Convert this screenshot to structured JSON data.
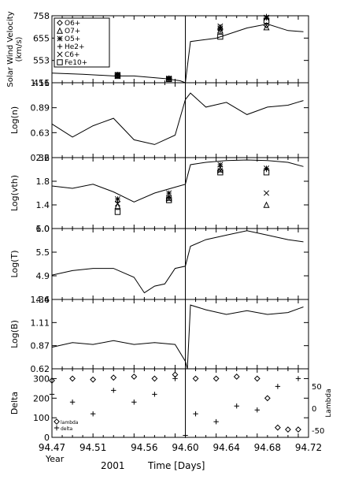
{
  "footer": {
    "year_label": "Year",
    "year_value": "2001",
    "xlabel": "Time [Days]"
  },
  "chart_data": [
    {
      "type": "scatter",
      "ylabel": "Solar Wind Velocity (km/s)",
      "ylim": [
        451,
        758
      ],
      "yticks": [
        "758",
        "655",
        "553",
        "451"
      ],
      "legend": [
        "O6+",
        "O7+",
        "O5+",
        "He2+",
        "C6+",
        "Fe10+"
      ],
      "legend_placement": "top-left",
      "series": [
        {
          "name": "O6+",
          "marker": "diamond",
          "x": [
            94.534,
            94.584,
            94.634,
            94.679
          ],
          "y": [
            486,
            470,
            696,
            714
          ]
        },
        {
          "name": "O7+",
          "marker": "triangle",
          "x": [
            94.534,
            94.584,
            94.634,
            94.679
          ],
          "y": [
            482,
            468,
            690,
            705
          ]
        },
        {
          "name": "O5+",
          "marker": "star",
          "x": [
            94.534,
            94.584,
            94.634,
            94.679
          ],
          "y": [
            487,
            471,
            701,
            748
          ]
        },
        {
          "name": "He2+",
          "marker": "plus",
          "x": [
            94.534,
            94.584,
            94.634,
            94.679
          ],
          "y": [
            489,
            473,
            707,
            755
          ]
        },
        {
          "name": "C6+",
          "marker": "x",
          "x": [
            94.534,
            94.584,
            94.634,
            94.679
          ],
          "y": [
            487,
            469,
            710,
            750
          ]
        },
        {
          "name": "Fe10+",
          "marker": "square",
          "x": [
            94.534,
            94.584,
            94.634,
            94.679
          ],
          "y": [
            486,
            468,
            662,
            735
          ]
        }
      ],
      "line": {
        "x": [
          94.47,
          94.5,
          94.53,
          94.55,
          94.58,
          94.595,
          94.6,
          94.605,
          94.63,
          94.66,
          94.68,
          94.7,
          94.715
        ],
        "y": [
          495,
          490,
          482,
          482,
          470,
          460,
          451,
          640,
          655,
          702,
          720,
          690,
          685
        ]
      }
    },
    {
      "type": "line",
      "ylabel": "Log(n)",
      "ylim": [
        0.36,
        1.16
      ],
      "yticks": [
        "1.16",
        "0.89",
        "0.63",
        "0.36"
      ],
      "x": [
        94.47,
        94.49,
        94.51,
        94.53,
        94.55,
        94.57,
        94.59,
        94.6,
        94.605,
        94.62,
        94.64,
        94.66,
        94.68,
        94.7,
        94.715
      ],
      "y": [
        0.72,
        0.58,
        0.7,
        0.78,
        0.55,
        0.5,
        0.6,
        0.98,
        1.05,
        0.9,
        0.95,
        0.82,
        0.9,
        0.92,
        0.97
      ]
    },
    {
      "type": "line",
      "ylabel": "Log(vth)",
      "ylim": [
        1.0,
        2.2
      ],
      "yticks": [
        "2.2",
        "1.8",
        "1.4",
        "1.0"
      ],
      "x": [
        94.47,
        94.49,
        94.51,
        94.53,
        94.55,
        94.57,
        94.59,
        94.6,
        94.605,
        94.62,
        94.64,
        94.66,
        94.68,
        94.7,
        94.715
      ],
      "y": [
        1.72,
        1.68,
        1.75,
        1.62,
        1.45,
        1.6,
        1.7,
        1.75,
        2.08,
        2.12,
        2.15,
        2.16,
        2.15,
        2.12,
        2.05
      ],
      "markers": [
        {
          "name": "O5+",
          "marker": "star",
          "x": [
            94.534,
            94.584,
            94.634,
            94.679
          ],
          "y": [
            1.5,
            1.6,
            2.08,
            2.02
          ]
        },
        {
          "name": "He2+",
          "marker": "plus",
          "x": [
            94.534,
            94.584,
            94.634,
            94.679
          ],
          "y": [
            1.45,
            1.55,
            2.05,
            2.0
          ]
        },
        {
          "name": "C6+",
          "marker": "x",
          "x": [
            94.534,
            94.584,
            94.634,
            94.679
          ],
          "y": [
            1.42,
            1.5,
            1.98,
            1.6
          ]
        },
        {
          "name": "O7+",
          "marker": "triangle",
          "x": [
            94.534,
            94.584,
            94.634,
            94.679
          ],
          "y": [
            1.38,
            1.52,
            2.0,
            1.4
          ]
        },
        {
          "name": "Fe10+",
          "marker": "square",
          "x": [
            94.534,
            94.584,
            94.634,
            94.679
          ],
          "y": [
            1.28,
            1.48,
            1.95,
            1.95
          ]
        }
      ]
    },
    {
      "type": "line",
      "ylabel": "Log(T)",
      "ylim": [
        4.4,
        6.0
      ],
      "yticks": [
        "6.0",
        "5.5",
        "4.9",
        "4.4"
      ],
      "x": [
        94.47,
        94.49,
        94.51,
        94.53,
        94.55,
        94.56,
        94.57,
        94.58,
        94.59,
        94.6,
        94.605,
        94.62,
        94.64,
        94.66,
        94.68,
        94.7,
        94.715
      ],
      "y": [
        4.95,
        5.05,
        5.1,
        5.1,
        4.9,
        4.55,
        4.7,
        4.75,
        5.1,
        5.15,
        5.6,
        5.75,
        5.85,
        5.95,
        5.85,
        5.75,
        5.7
      ]
    },
    {
      "type": "line",
      "ylabel": "Log(B)",
      "ylim": [
        0.62,
        1.36
      ],
      "yticks": [
        "1.36",
        "1.11",
        "0.87",
        "0.62"
      ],
      "x": [
        94.47,
        94.49,
        94.51,
        94.53,
        94.55,
        94.57,
        94.59,
        94.6,
        94.602,
        94.605,
        94.62,
        94.64,
        94.66,
        94.68,
        94.7,
        94.715
      ],
      "y": [
        0.85,
        0.9,
        0.88,
        0.92,
        0.88,
        0.9,
        0.88,
        0.7,
        0.62,
        1.3,
        1.25,
        1.2,
        1.24,
        1.2,
        1.22,
        1.28
      ]
    },
    {
      "type": "scatter",
      "ylabel": "Delta",
      "y2label": "Lambda",
      "ylim": [
        0,
        350
      ],
      "yticks": [
        "300",
        "200",
        "100",
        "0"
      ],
      "y2ticks": [
        "50",
        "0",
        "-50"
      ],
      "legend": [
        "lambda",
        "delta"
      ],
      "legend_placement": "bottom-left",
      "series": [
        {
          "name": "lambda",
          "marker": "diamond",
          "x": [
            94.47,
            94.49,
            94.51,
            94.53,
            94.55,
            94.57,
            94.59,
            94.61,
            94.63,
            94.65,
            94.67,
            94.68,
            94.69,
            94.7,
            94.71
          ],
          "y": [
            290,
            300,
            295,
            305,
            310,
            300,
            320,
            300,
            300,
            310,
            300,
            200,
            50,
            40,
            40
          ]
        },
        {
          "name": "delta",
          "marker": "plus",
          "x": [
            94.47,
            94.49,
            94.51,
            94.53,
            94.55,
            94.57,
            94.59,
            94.6,
            94.61,
            94.63,
            94.65,
            94.67,
            94.69,
            94.71
          ],
          "y": [
            220,
            180,
            120,
            240,
            180,
            220,
            300,
            10,
            120,
            80,
            160,
            140,
            260,
            300
          ]
        }
      ],
      "xlim": [
        94.47,
        94.72
      ],
      "xticks": [
        "94.47",
        "94.51",
        "94.56",
        "94.60",
        "94.64",
        "94.68",
        "94.72"
      ]
    }
  ]
}
